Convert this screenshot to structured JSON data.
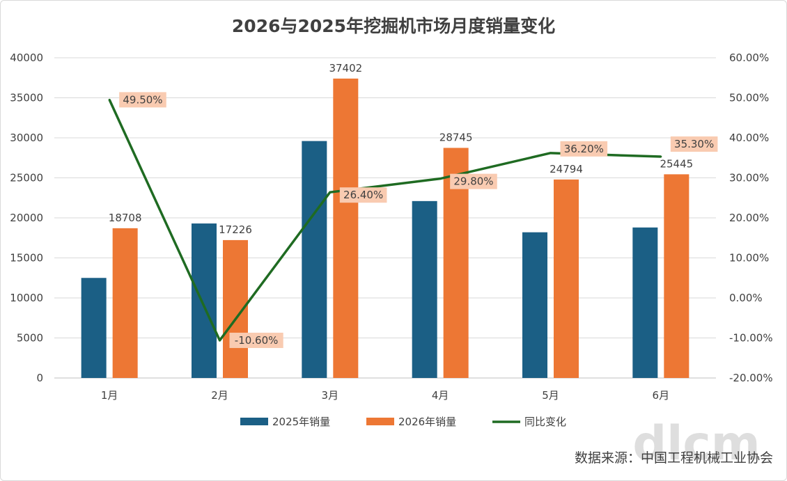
{
  "chart_data": {
    "type": "bar",
    "title": "2026与2025年挖掘机市场月度销量变化",
    "categories": [
      "1月",
      "2月",
      "3月",
      "4月",
      "5月",
      "6月"
    ],
    "series": [
      {
        "name": "2025年销量",
        "type": "bar",
        "axis": "left",
        "color": "#1b5f85",
        "values": [
          12500,
          19300,
          29600,
          22100,
          18200,
          18800
        ]
      },
      {
        "name": "2026年销量",
        "type": "bar",
        "axis": "left",
        "color": "#ed7734",
        "values": [
          18708,
          17226,
          37402,
          28745,
          24794,
          25445
        ],
        "data_labels": [
          "18708",
          "17226",
          "37402",
          "28745",
          "24794",
          "25445"
        ]
      },
      {
        "name": "同比变化",
        "type": "line",
        "axis": "right",
        "color": "#1f6b22",
        "values": [
          49.5,
          -10.6,
          26.4,
          29.8,
          36.2,
          35.3
        ],
        "data_labels": [
          "49.50%",
          "-10.60%",
          "26.40%",
          "29.80%",
          "36.20%",
          "35.30%"
        ]
      }
    ],
    "y_left": {
      "min": 0,
      "max": 40000,
      "step": 5000,
      "ticks": [
        "0",
        "5000",
        "10000",
        "15000",
        "20000",
        "25000",
        "30000",
        "35000",
        "40000"
      ]
    },
    "y_right": {
      "min": -20,
      "max": 60,
      "step": 10,
      "ticks": [
        "-20.00%",
        "-10.00%",
        "0.00%",
        "10.00%",
        "20.00%",
        "30.00%",
        "40.00%",
        "50.00%",
        "60.00%"
      ]
    },
    "grid": true,
    "legend_position": "bottom",
    "label_box_color": "#f9cbb1"
  },
  "source_text": "数据来源：中国工程机械工业协会",
  "watermark": "dlcm"
}
